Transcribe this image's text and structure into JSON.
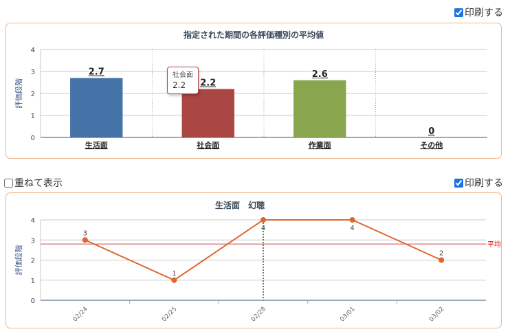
{
  "print_checkbox_1": {
    "label": "印刷する",
    "checked": true
  },
  "overlay_checkbox": {
    "label": "重ねて表示",
    "checked": false
  },
  "print_checkbox_2": {
    "label": "印刷する",
    "checked": true
  },
  "chart_data": [
    {
      "type": "bar",
      "title": "指定された期間の各評価種別の平均値",
      "ylabel": "評価段階",
      "categories": [
        "生活面",
        "社会面",
        "作業面",
        "その他"
      ],
      "values": [
        2.7,
        2.2,
        2.6,
        0
      ],
      "value_labels": [
        "2.7",
        "2.2",
        "2.6",
        "0"
      ],
      "colors": [
        "#4572a7",
        "#aa4643",
        "#89a54e",
        "#80699b"
      ],
      "ylim": [
        0,
        4
      ],
      "yticks": [
        "0",
        "1",
        "2",
        "3",
        "4"
      ],
      "grid": true,
      "tooltip": {
        "category": "社会面",
        "value": "2.2"
      }
    },
    {
      "type": "line",
      "title": "生活面　幻聴",
      "ylabel": "評価段階",
      "x": [
        "02/24",
        "02/25",
        "02/28",
        "03/01",
        "03/02"
      ],
      "values": [
        3,
        1,
        4,
        4,
        2
      ],
      "point_labels": [
        "3",
        "1",
        "4",
        "4",
        "2"
      ],
      "ylim": [
        0,
        4
      ],
      "yticks": [
        "0",
        "1",
        "2",
        "3",
        "4"
      ],
      "color": "#e0652e",
      "average_line": {
        "label": "平均",
        "value": 2.8,
        "color": "#c0504d"
      },
      "highlight_x": "02/28",
      "grid": true
    }
  ]
}
